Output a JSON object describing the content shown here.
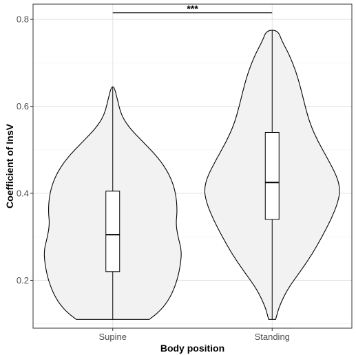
{
  "chart_data": {
    "type": "violin",
    "xlabel": "Body position",
    "ylabel": "Coefficient of InsV",
    "categories": [
      "Supine",
      "Standing"
    ],
    "ylim": [
      0.09,
      0.835
    ],
    "yticks": [
      0.2,
      0.4,
      0.6,
      0.8
    ],
    "ytick_labels": [
      "0.2",
      "0.4",
      "0.6",
      "0.8"
    ],
    "grid": true,
    "fill_color": "#f2f2f2",
    "line_color": "#000000",
    "groups": [
      {
        "name": "Supine",
        "min": 0.11,
        "q1": 0.22,
        "median": 0.305,
        "q3": 0.405,
        "max": 0.645,
        "density": [
          [
            0.11,
            0.52
          ],
          [
            0.13,
            0.68
          ],
          [
            0.16,
            0.82
          ],
          [
            0.2,
            0.92
          ],
          [
            0.24,
            0.97
          ],
          [
            0.27,
            0.98
          ],
          [
            0.3,
            0.93
          ],
          [
            0.33,
            0.9
          ],
          [
            0.36,
            0.92
          ],
          [
            0.4,
            0.9
          ],
          [
            0.44,
            0.82
          ],
          [
            0.48,
            0.66
          ],
          [
            0.52,
            0.42
          ],
          [
            0.55,
            0.24
          ],
          [
            0.58,
            0.12
          ],
          [
            0.62,
            0.06
          ],
          [
            0.645,
            0.02
          ]
        ]
      },
      {
        "name": "Standing",
        "min": 0.11,
        "q1": 0.34,
        "median": 0.425,
        "q3": 0.54,
        "max": 0.775,
        "density": [
          [
            0.11,
            0.05
          ],
          [
            0.14,
            0.1
          ],
          [
            0.18,
            0.22
          ],
          [
            0.22,
            0.4
          ],
          [
            0.26,
            0.57
          ],
          [
            0.3,
            0.71
          ],
          [
            0.34,
            0.84
          ],
          [
            0.38,
            0.94
          ],
          [
            0.41,
            0.97
          ],
          [
            0.44,
            0.92
          ],
          [
            0.48,
            0.79
          ],
          [
            0.52,
            0.65
          ],
          [
            0.56,
            0.54
          ],
          [
            0.6,
            0.47
          ],
          [
            0.64,
            0.41
          ],
          [
            0.68,
            0.34
          ],
          [
            0.72,
            0.24
          ],
          [
            0.75,
            0.14
          ],
          [
            0.775,
            0.08
          ]
        ]
      }
    ],
    "annotation": {
      "text": "***",
      "y": 0.815,
      "from": "Supine",
      "to": "Standing"
    }
  }
}
